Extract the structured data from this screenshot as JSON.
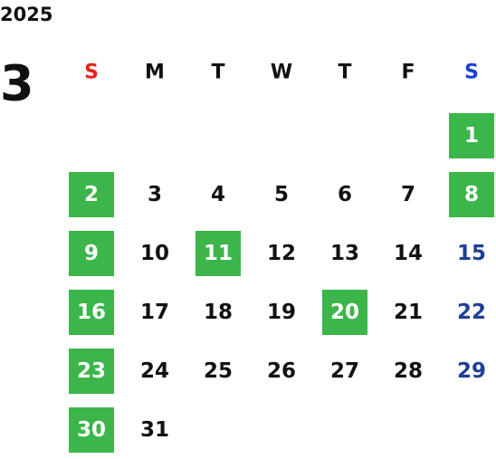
{
  "year": "2025",
  "month": "3",
  "weekdays": [
    "S",
    "M",
    "T",
    "W",
    "T",
    "F",
    "S"
  ],
  "weeks": [
    [
      null,
      null,
      null,
      null,
      null,
      null,
      {
        "day": "1",
        "highlight": true
      }
    ],
    [
      {
        "day": "2",
        "highlight": true
      },
      {
        "day": "3",
        "highlight": false
      },
      {
        "day": "4",
        "highlight": false
      },
      {
        "day": "5",
        "highlight": false
      },
      {
        "day": "6",
        "highlight": false
      },
      {
        "day": "7",
        "highlight": false
      },
      {
        "day": "8",
        "highlight": true
      }
    ],
    [
      {
        "day": "9",
        "highlight": true
      },
      {
        "day": "10",
        "highlight": false
      },
      {
        "day": "11",
        "highlight": true
      },
      {
        "day": "12",
        "highlight": false
      },
      {
        "day": "13",
        "highlight": false
      },
      {
        "day": "14",
        "highlight": false
      },
      {
        "day": "15",
        "highlight": false
      }
    ],
    [
      {
        "day": "16",
        "highlight": true
      },
      {
        "day": "17",
        "highlight": false
      },
      {
        "day": "18",
        "highlight": false
      },
      {
        "day": "19",
        "highlight": false
      },
      {
        "day": "20",
        "highlight": true
      },
      {
        "day": "21",
        "highlight": false
      },
      {
        "day": "22",
        "highlight": false
      }
    ],
    [
      {
        "day": "23",
        "highlight": true
      },
      {
        "day": "24",
        "highlight": false
      },
      {
        "day": "25",
        "highlight": false
      },
      {
        "day": "26",
        "highlight": false
      },
      {
        "day": "27",
        "highlight": false
      },
      {
        "day": "28",
        "highlight": false
      },
      {
        "day": "29",
        "highlight": false
      }
    ],
    [
      {
        "day": "30",
        "highlight": true
      },
      {
        "day": "31",
        "highlight": false
      },
      null,
      null,
      null,
      null,
      null
    ]
  ]
}
